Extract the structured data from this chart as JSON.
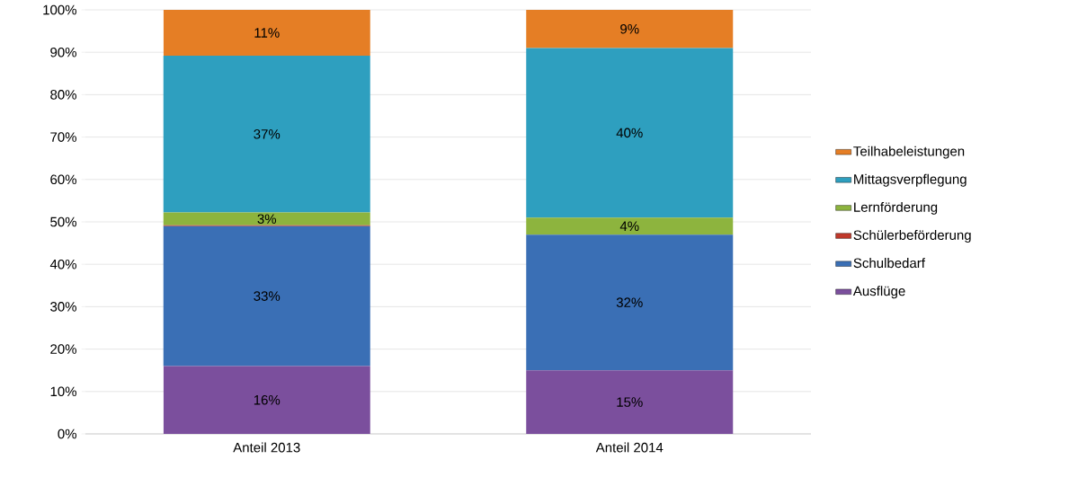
{
  "chart_data": {
    "type": "bar",
    "stacked": true,
    "categories": [
      "Anteil 2013",
      "Anteil 2014"
    ],
    "series": [
      {
        "name": "Ausflüge",
        "color": "#7b4f9d",
        "values": [
          16,
          15
        ],
        "value_labels": [
          "16%",
          "15%"
        ]
      },
      {
        "name": "Schulbedarf",
        "color": "#3a6fb5",
        "values": [
          33,
          32
        ],
        "value_labels": [
          "33%",
          "32%"
        ]
      },
      {
        "name": "Schülerbeförderung",
        "color": "#c0392b",
        "values": [
          0.2,
          0
        ],
        "value_labels": [
          null,
          null
        ]
      },
      {
        "name": "Lernförderung",
        "color": "#8db43e",
        "values": [
          3,
          4
        ],
        "value_labels": [
          "3%",
          "4%"
        ]
      },
      {
        "name": "Mittagsverpflegung",
        "color": "#2e9fbf",
        "values": [
          37,
          40
        ],
        "value_labels": [
          "37%",
          "40%"
        ]
      },
      {
        "name": "Teilhabeleistungen",
        "color": "#e57e25",
        "values": [
          10.8,
          9
        ],
        "value_labels": [
          "11%",
          "9%"
        ]
      }
    ],
    "ylim": [
      0,
      100
    ],
    "yticks": [
      {
        "value": 0,
        "label": "0%"
      },
      {
        "value": 10,
        "label": "10%"
      },
      {
        "value": 20,
        "label": "20%"
      },
      {
        "value": 30,
        "label": "30%"
      },
      {
        "value": 40,
        "label": "40%"
      },
      {
        "value": 50,
        "label": "50%"
      },
      {
        "value": 60,
        "label": "60%"
      },
      {
        "value": 70,
        "label": "70%"
      },
      {
        "value": 80,
        "label": "80%"
      },
      {
        "value": 90,
        "label": "90%"
      },
      {
        "value": 100,
        "label": "100%"
      }
    ],
    "grid": "y",
    "legend": "right"
  }
}
